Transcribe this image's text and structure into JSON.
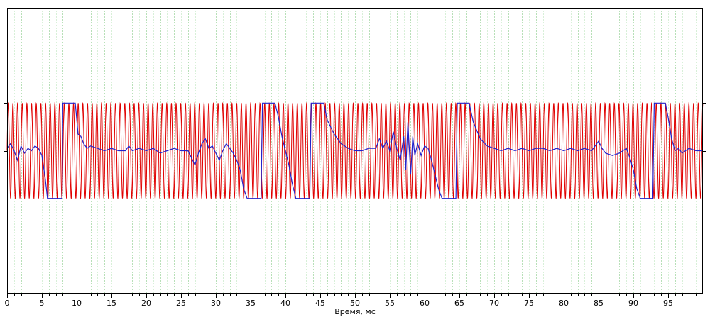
{
  "chart_data": {
    "type": "line",
    "title": "",
    "xlabel": "Время, мс",
    "ylabel": "",
    "xlim": [
      0,
      100
    ],
    "ylim": [
      -3,
      3
    ],
    "x_ticks": [
      0,
      5,
      10,
      15,
      20,
      25,
      30,
      35,
      40,
      45,
      50,
      55,
      60,
      65,
      70,
      75,
      80,
      85,
      90,
      95
    ],
    "x_tick_labels": [
      "0",
      "5",
      "10",
      "15",
      "20",
      "25",
      "30",
      "35",
      "40",
      "45",
      "50",
      "55",
      "60",
      "65",
      "70",
      "75",
      "80",
      "85",
      "90",
      "95"
    ],
    "minor_x_step": 1,
    "major_grid_every": 2,
    "grid": true,
    "legend": "none",
    "colors": {
      "carrier": "#e00000",
      "message": "#2222cc",
      "grid_minor": "#d8f0d8",
      "grid_major": "#b8e0b8",
      "axis": "#000000"
    },
    "series": [
      {
        "style": "carrier",
        "period_ms": 0.67,
        "amplitude": 1.0,
        "offset": 0
      },
      {
        "style": "message",
        "points": [
          [
            0,
            0.05
          ],
          [
            0.5,
            0.15
          ],
          [
            1,
            0.0
          ],
          [
            1.5,
            -0.2
          ],
          [
            2,
            0.1
          ],
          [
            2.5,
            -0.05
          ],
          [
            3,
            0.05
          ],
          [
            3.5,
            0.0
          ],
          [
            4,
            0.1
          ],
          [
            4.5,
            0.05
          ],
          [
            5,
            -0.1
          ],
          [
            5.5,
            -0.6
          ],
          [
            5.8,
            -1.0
          ],
          [
            7.9,
            -1.0
          ],
          [
            8.0,
            1.0
          ],
          [
            9.8,
            1.0
          ],
          [
            10.2,
            0.35
          ],
          [
            10.6,
            0.3
          ],
          [
            11,
            0.15
          ],
          [
            11.5,
            0.05
          ],
          [
            12,
            0.1
          ],
          [
            13,
            0.05
          ],
          [
            14,
            0.0
          ],
          [
            15,
            0.05
          ],
          [
            16,
            0.0
          ],
          [
            17,
            0.0
          ],
          [
            17.5,
            0.1
          ],
          [
            18,
            0.0
          ],
          [
            19,
            0.05
          ],
          [
            20,
            0.0
          ],
          [
            21,
            0.05
          ],
          [
            22,
            -0.05
          ],
          [
            23,
            0.0
          ],
          [
            24,
            0.05
          ],
          [
            25,
            0.0
          ],
          [
            26,
            0.0
          ],
          [
            26.5,
            -0.15
          ],
          [
            27,
            -0.3
          ],
          [
            27.5,
            -0.05
          ],
          [
            28,
            0.15
          ],
          [
            28.5,
            0.25
          ],
          [
            29,
            0.05
          ],
          [
            29.5,
            0.1
          ],
          [
            30,
            -0.05
          ],
          [
            30.5,
            -0.2
          ],
          [
            31,
            0.0
          ],
          [
            31.5,
            0.15
          ],
          [
            32,
            0.05
          ],
          [
            32.5,
            -0.05
          ],
          [
            33,
            -0.2
          ],
          [
            33.5,
            -0.4
          ],
          [
            34,
            -0.8
          ],
          [
            34.5,
            -1.0
          ],
          [
            36.5,
            -1.0
          ],
          [
            36.7,
            1.0
          ],
          [
            38.5,
            1.0
          ],
          [
            39,
            0.7
          ],
          [
            39.5,
            0.3
          ],
          [
            40,
            0.0
          ],
          [
            40.5,
            -0.3
          ],
          [
            41,
            -0.7
          ],
          [
            41.5,
            -1.0
          ],
          [
            43.5,
            -1.0
          ],
          [
            43.7,
            1.0
          ],
          [
            45.5,
            1.0
          ],
          [
            46,
            0.65
          ],
          [
            47,
            0.35
          ],
          [
            48,
            0.15
          ],
          [
            49,
            0.05
          ],
          [
            50,
            0.0
          ],
          [
            51,
            0.0
          ],
          [
            52,
            0.05
          ],
          [
            53,
            0.05
          ],
          [
            53.5,
            0.25
          ],
          [
            54,
            0.05
          ],
          [
            54.5,
            0.2
          ],
          [
            55,
            0.0
          ],
          [
            55.5,
            0.4
          ],
          [
            56,
            0.05
          ],
          [
            56.5,
            -0.2
          ],
          [
            57,
            0.3
          ],
          [
            57.3,
            -0.4
          ],
          [
            57.6,
            0.6
          ],
          [
            58,
            -0.5
          ],
          [
            58.3,
            0.3
          ],
          [
            58.6,
            -0.1
          ],
          [
            59,
            0.15
          ],
          [
            59.5,
            -0.1
          ],
          [
            60,
            0.1
          ],
          [
            60.5,
            0.05
          ],
          [
            61,
            -0.2
          ],
          [
            61.5,
            -0.5
          ],
          [
            62,
            -0.8
          ],
          [
            62.5,
            -1.0
          ],
          [
            64.5,
            -1.0
          ],
          [
            64.7,
            1.0
          ],
          [
            66.4,
            1.0
          ],
          [
            67,
            0.6
          ],
          [
            68,
            0.25
          ],
          [
            69,
            0.1
          ],
          [
            70,
            0.05
          ],
          [
            71,
            0.0
          ],
          [
            72,
            0.05
          ],
          [
            73,
            0.0
          ],
          [
            74,
            0.05
          ],
          [
            75,
            0.0
          ],
          [
            76,
            0.05
          ],
          [
            77,
            0.05
          ],
          [
            78,
            0.0
          ],
          [
            79,
            0.05
          ],
          [
            80,
            0.0
          ],
          [
            81,
            0.05
          ],
          [
            82,
            0.0
          ],
          [
            83,
            0.05
          ],
          [
            84,
            0.0
          ],
          [
            85,
            0.2
          ],
          [
            85.5,
            0.05
          ],
          [
            86,
            -0.05
          ],
          [
            87,
            -0.1
          ],
          [
            88,
            -0.05
          ],
          [
            89,
            0.05
          ],
          [
            89.5,
            -0.15
          ],
          [
            90,
            -0.4
          ],
          [
            90.5,
            -0.8
          ],
          [
            91,
            -1.0
          ],
          [
            92.8,
            -1.0
          ],
          [
            93.0,
            1.0
          ],
          [
            94.6,
            1.0
          ],
          [
            95,
            0.7
          ],
          [
            95.5,
            0.25
          ],
          [
            96,
            0.0
          ],
          [
            96.5,
            0.05
          ],
          [
            97,
            -0.05
          ],
          [
            97.5,
            0.0
          ],
          [
            98,
            0.05
          ],
          [
            99,
            0.0
          ],
          [
            100,
            0.0
          ]
        ]
      }
    ]
  }
}
